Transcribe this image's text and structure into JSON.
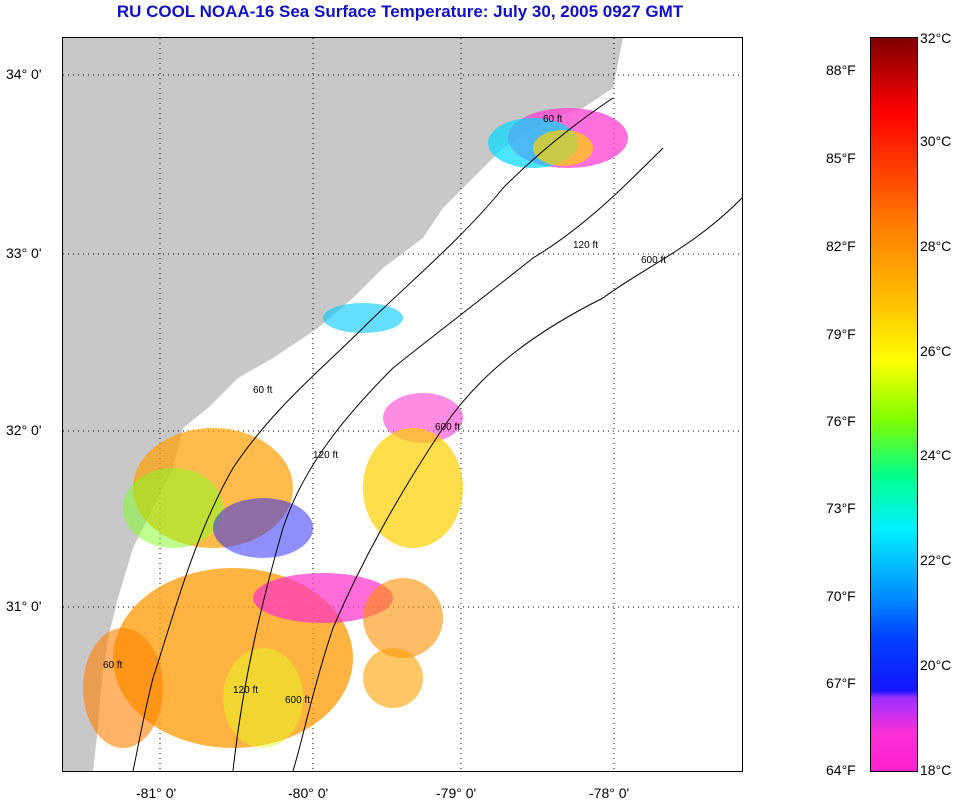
{
  "title": "RU COOL  NOAA-16  Sea Surface Temperature:  July 30, 2005 0927 GMT",
  "lat_labels": [
    "34° 0'",
    "33° 0'",
    "32° 0'",
    "31° 0'"
  ],
  "lon_labels": [
    "-81° 0'",
    "-80° 0'",
    "-79° 0'",
    "-78° 0'"
  ],
  "depth_labels": [
    "60 ft",
    "120 ft",
    "600 ft",
    "60 ft",
    "120 ft",
    "600 ft",
    "60 ft",
    "120 ft",
    "600 ft"
  ],
  "colorbar": {
    "celsius": [
      "32°C",
      "30°C",
      "28°C",
      "26°C",
      "24°C",
      "22°C",
      "20°C",
      "18°C"
    ],
    "fahrenheit": [
      "88°F",
      "85°F",
      "82°F",
      "79°F",
      "76°F",
      "73°F",
      "70°F",
      "67°F",
      "64°F"
    ],
    "range_c": [
      18,
      32
    ]
  },
  "colors": {
    "land": "#c8c8c8",
    "title": "#1010c8",
    "water": "#ffffff"
  }
}
